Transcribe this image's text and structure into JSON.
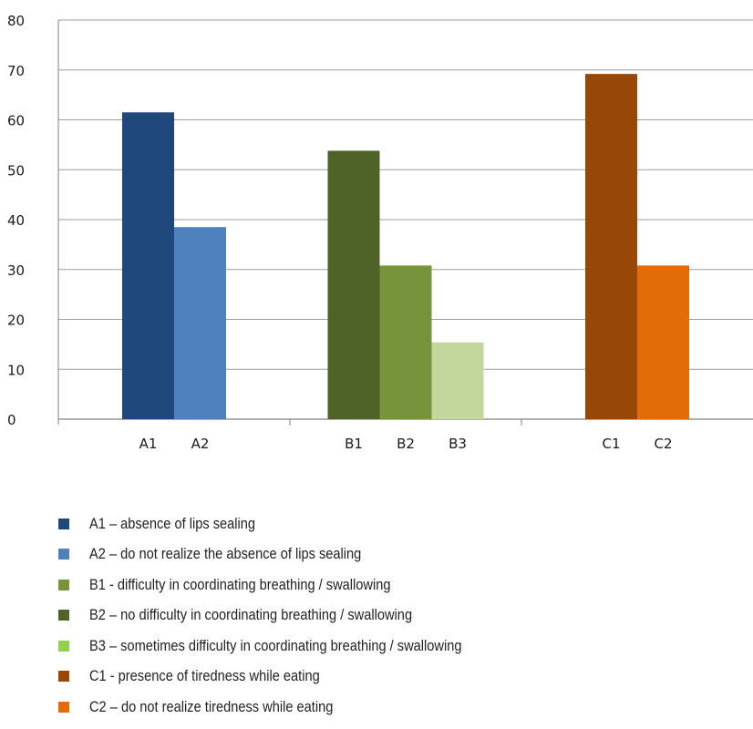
{
  "chart_data": {
    "type": "bar",
    "ylim": [
      0,
      80
    ],
    "yticks": [
      0,
      10,
      20,
      30,
      40,
      50,
      60,
      70,
      80
    ],
    "grid": true,
    "groups": [
      {
        "bars": [
          {
            "label": "A1",
            "value": 61.5,
            "color": "#1f497d"
          },
          {
            "label": "A2",
            "value": 38.5,
            "color": "#4f81bd"
          }
        ]
      },
      {
        "bars": [
          {
            "label": "B1",
            "value": 53.8,
            "color": "#4f6228"
          },
          {
            "label": "B2",
            "value": 30.8,
            "color": "#77933c"
          },
          {
            "label": "B3",
            "value": 15.4,
            "color": "#c3d69b"
          }
        ]
      },
      {
        "bars": [
          {
            "label": "C1",
            "value": 69.2,
            "color": "#974806"
          },
          {
            "label": "C2",
            "value": 30.8,
            "color": "#e36c09"
          }
        ]
      }
    ],
    "legend_position": "bottom",
    "legend": [
      {
        "text": "A1 – absence of lips sealing",
        "color": "#1f497d"
      },
      {
        "text": "A2 – do not realize the absence of lips sealing",
        "color": "#4f81bd"
      },
      {
        "text": "B1 - difficulty in coordinating breathing / swallowing",
        "color": "#77933c"
      },
      {
        "text": "B2 – no difficulty in coordinating breathing / swallowing",
        "color": "#4f6228"
      },
      {
        "text": "B3 – sometimes difficulty in coordinating breathing / swallowing",
        "color": "#92d050"
      },
      {
        "text": "C1 - presence of tiredness while eating",
        "color": "#974806"
      },
      {
        "text": "C2 – do not realize tiredness while eating",
        "color": "#e36c09"
      }
    ]
  }
}
